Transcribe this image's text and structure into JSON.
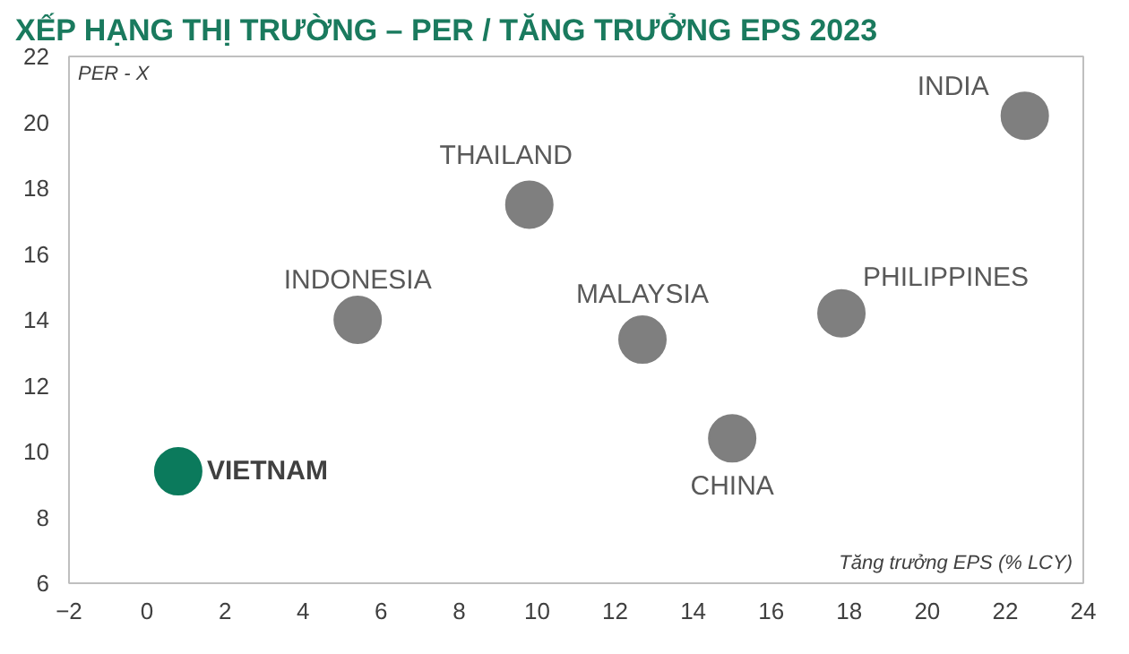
{
  "chart_data": {
    "type": "scatter",
    "title": "XẾP HẠNG THỊ TRƯỜNG – PER / TĂNG TRƯỞNG EPS 2023",
    "xlabel": "Tăng trưởng EPS (% LCY)",
    "ylabel": "PER - X",
    "xlim": [
      -2,
      24
    ],
    "xticks": [
      -2,
      0,
      2,
      4,
      6,
      8,
      10,
      12,
      14,
      16,
      18,
      20,
      22,
      24
    ],
    "ylim": [
      6,
      22
    ],
    "yticks": [
      6,
      8,
      10,
      12,
      14,
      16,
      18,
      20,
      22
    ],
    "grid": false,
    "legend": false,
    "marker": "circle",
    "series": [
      {
        "name": "VIETNAM",
        "color": "#0b7a5c",
        "x": [
          0.8
        ],
        "values": [
          9.4
        ]
      },
      {
        "name": "INDONESIA",
        "color": "#7f7f7f",
        "x": [
          5.4
        ],
        "values": [
          14.0
        ]
      },
      {
        "name": "THAILAND",
        "color": "#7f7f7f",
        "x": [
          9.8
        ],
        "values": [
          17.5
        ]
      },
      {
        "name": "MALAYSIA",
        "color": "#7f7f7f",
        "x": [
          12.7
        ],
        "values": [
          13.4
        ]
      },
      {
        "name": "CHINA",
        "color": "#7f7f7f",
        "x": [
          15.0
        ],
        "values": [
          10.4
        ]
      },
      {
        "name": "PHILIPPINES",
        "color": "#7f7f7f",
        "x": [
          17.8
        ],
        "values": [
          14.2
        ]
      },
      {
        "name": "INDIA",
        "color": "#7f7f7f",
        "x": [
          22.5
        ],
        "values": [
          20.2
        ]
      }
    ]
  }
}
